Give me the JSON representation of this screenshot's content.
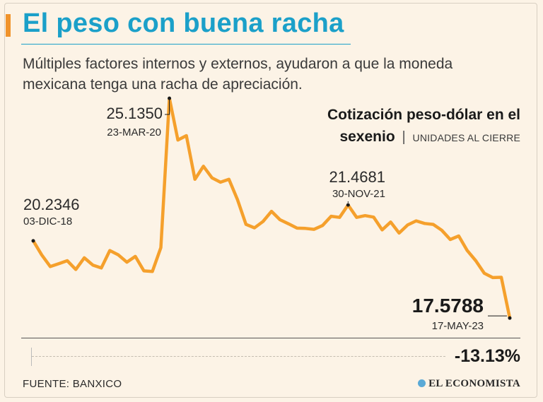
{
  "header": {
    "title": "El peso con buena racha",
    "subtitle": "Múltiples factores internos y externos, ayudaron a que la moneda mexicana tenga una racha de apreciación."
  },
  "chart_title": {
    "line1": "Cotización peso-dólar en el",
    "line2": "sexenio",
    "separator": "|",
    "unit": "UNIDADES AL CIERRE"
  },
  "chart_data": {
    "type": "line",
    "title": "Cotización peso-dólar en el sexenio",
    "ylabel": "UNIDADES AL CIERRE",
    "ylim": [
      17.0,
      25.6
    ],
    "series": [
      {
        "values": [
          20.2346,
          19.75,
          19.35,
          19.45,
          19.55,
          19.25,
          19.65,
          19.4,
          19.3,
          19.9,
          19.75,
          19.5,
          19.7,
          19.2,
          19.18,
          20.0,
          25.135,
          23.7,
          23.85,
          22.35,
          22.8,
          22.4,
          22.25,
          22.35,
          21.65,
          20.8,
          20.68,
          20.9,
          21.25,
          20.96,
          20.82,
          20.67,
          20.66,
          20.63,
          20.76,
          21.08,
          21.04,
          21.4681,
          21.04,
          21.1,
          21.05,
          20.61,
          20.88,
          20.5,
          20.78,
          20.92,
          20.83,
          20.8,
          20.6,
          20.28,
          20.4,
          19.9,
          19.55,
          19.12,
          18.97,
          18.98,
          17.5788
        ]
      }
    ],
    "annotations": [
      {
        "label": "20.2346",
        "date": "03-DIC-18",
        "index": 0
      },
      {
        "label": "25.1350",
        "date": "23-MAR-20",
        "index": 16
      },
      {
        "label": "21.4681",
        "date": "30-NOV-21",
        "index": 37
      },
      {
        "label": "17.5788",
        "date": "17-MAY-23",
        "index": 56
      }
    ],
    "line_color": "#f5a02c",
    "change": "-13.13%"
  },
  "footer": {
    "source": "FUENTE: BANXICO",
    "brand": "EL ECONOMISTA"
  }
}
